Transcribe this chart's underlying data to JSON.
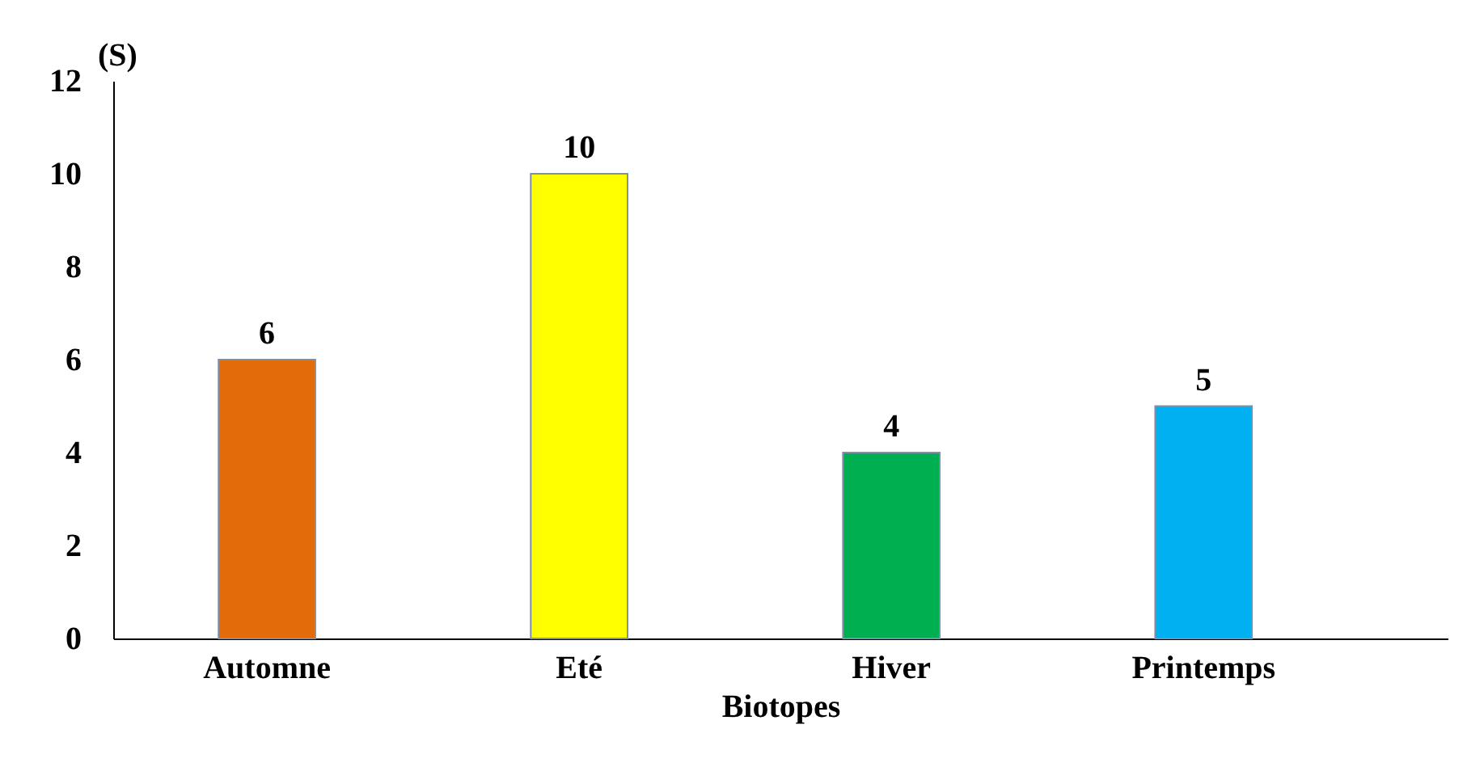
{
  "chart_data": {
    "type": "bar",
    "ylabel": "(S)",
    "xlabel": "Biotopes",
    "categories": [
      "Automne",
      "Eté",
      "Hiver",
      "Printemps"
    ],
    "values": [
      6,
      10,
      4,
      5
    ],
    "colors": [
      "#e36c0a",
      "#ffff00",
      "#00b050",
      "#00b0f0"
    ],
    "ylim": [
      0,
      12
    ],
    "yticks": [
      0,
      2,
      4,
      6,
      8,
      10,
      12
    ],
    "grid": false,
    "data_labels": true
  }
}
